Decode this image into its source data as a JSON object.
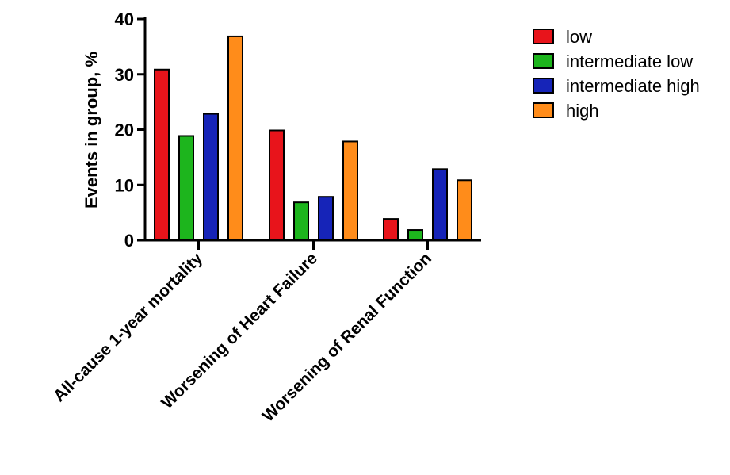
{
  "chart_data": {
    "type": "bar",
    "title": "",
    "xlabel": "",
    "ylabel": "Events in group, %",
    "ylim": [
      0,
      40
    ],
    "yticks": [
      "0",
      "10",
      "20",
      "30",
      "40"
    ],
    "grid": false,
    "legend_position": "right",
    "categories": [
      "All-cause 1-year mortality",
      "Worsening of Heart Failure",
      "Worsening of Renal Function"
    ],
    "series": [
      {
        "name": "low",
        "color": "#e8141b",
        "values": [
          31,
          20,
          4
        ]
      },
      {
        "name": "intermediate low",
        "color": "#1db51d",
        "values": [
          19,
          7,
          2
        ]
      },
      {
        "name": "intermediate high",
        "color": "#1624b8",
        "values": [
          23,
          8,
          13
        ]
      },
      {
        "name": "high",
        "color": "#ff8c1a",
        "values": [
          37,
          18,
          11
        ]
      }
    ]
  }
}
